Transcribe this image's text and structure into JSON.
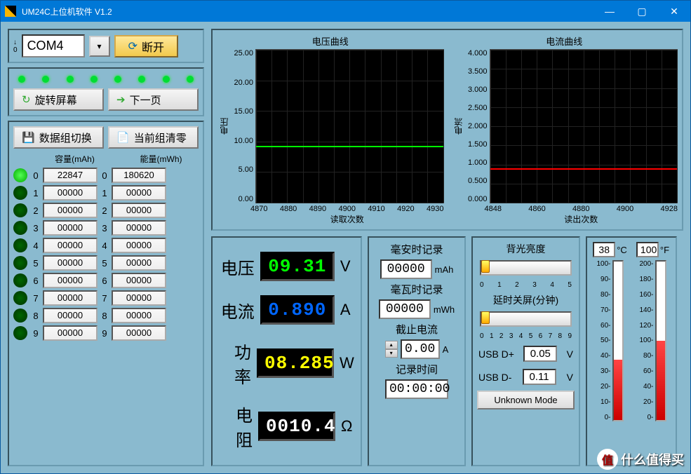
{
  "window": {
    "title": "UM24C上位机软件 V1.2"
  },
  "connection": {
    "port": "COM4",
    "disconnect_label": "断开"
  },
  "nav": {
    "rotate_label": "旋转屏幕",
    "next_label": "下一页"
  },
  "databank": {
    "switch_label": "数据组切换",
    "clear_label": "当前组清零",
    "cap_header": "容量(mAh)",
    "energy_header": "能量(mWh)",
    "rows": [
      {
        "idx": "0",
        "cap": "22847",
        "energy": "180620",
        "on": true
      },
      {
        "idx": "1",
        "cap": "00000",
        "energy": "00000",
        "on": false
      },
      {
        "idx": "2",
        "cap": "00000",
        "energy": "00000",
        "on": false
      },
      {
        "idx": "3",
        "cap": "00000",
        "energy": "00000",
        "on": false
      },
      {
        "idx": "4",
        "cap": "00000",
        "energy": "00000",
        "on": false
      },
      {
        "idx": "5",
        "cap": "00000",
        "energy": "00000",
        "on": false
      },
      {
        "idx": "6",
        "cap": "00000",
        "energy": "00000",
        "on": false
      },
      {
        "idx": "7",
        "cap": "00000",
        "energy": "00000",
        "on": false
      },
      {
        "idx": "8",
        "cap": "00000",
        "energy": "00000",
        "on": false
      },
      {
        "idx": "9",
        "cap": "00000",
        "energy": "00000",
        "on": false
      }
    ]
  },
  "charts": {
    "voltage": {
      "title": "电压曲线",
      "ylabel": "电压",
      "xlabel": "读取次数",
      "ylim": [
        0,
        25
      ],
      "yticks": [
        "25.00",
        "20.00",
        "15.00",
        "10.00",
        "5.00",
        "0.00"
      ],
      "xlim": [
        4870,
        4930
      ],
      "xticks": [
        "4870",
        "4880",
        "4890",
        "4900",
        "4910",
        "4920",
        "4930"
      ],
      "trace_value": 9.31,
      "trace_color": "#00ff00",
      "bg": "#000000",
      "grid": "#1e1e1e"
    },
    "current": {
      "title": "电流曲线",
      "ylabel": "电流",
      "xlabel": "读出次数",
      "ylim": [
        0,
        4
      ],
      "yticks": [
        "4.000",
        "3.500",
        "3.000",
        "2.500",
        "2.000",
        "1.500",
        "1.000",
        "0.500",
        "0.000"
      ],
      "xlim": [
        4848,
        4928
      ],
      "xticks": [
        "4848",
        "4860",
        "4880",
        "4900",
        "4928"
      ],
      "trace_value": 0.89,
      "trace_color": "#ff0000",
      "bg": "#000000",
      "grid": "#1e1e1e"
    }
  },
  "readouts": {
    "voltage": {
      "label": "电压",
      "value": "09.31",
      "unit": "V",
      "color": "#00ff00"
    },
    "current": {
      "label": "电流",
      "value": "0.890",
      "unit": "A",
      "color": "#0066ff"
    },
    "power": {
      "label": "功率",
      "value": "08.285",
      "unit": "W",
      "color": "#ffff00"
    },
    "resist": {
      "label": "电阻",
      "value": "0010.4",
      "unit": "Ω",
      "color": "#ffffff"
    }
  },
  "record": {
    "mah_title": "毫安时记录",
    "mah_value": "00000",
    "mah_unit": "mAh",
    "mwh_title": "毫瓦时记录",
    "mwh_value": "00000",
    "mwh_unit": "mWh",
    "cutoff_title": "截止电流",
    "cutoff_value": "0.00",
    "cutoff_unit": "A",
    "time_title": "记录时间",
    "time_value": "00:00:00"
  },
  "sliders": {
    "brightness": {
      "title": "背光亮度",
      "min": 0,
      "max": 5,
      "value": 0
    },
    "screenoff": {
      "title": "延时关屏(分钟)",
      "min": 0,
      "max": 9,
      "value": 0
    },
    "usb_dp": {
      "label": "USB D+",
      "value": "0.05",
      "unit": "V"
    },
    "usb_dm": {
      "label": "USB D-",
      "value": "0.11",
      "unit": "V"
    },
    "mode": "Unknown Mode"
  },
  "thermo": {
    "c": {
      "value": "38",
      "unit": "°C",
      "min": 0,
      "max": 100,
      "fill": 38
    },
    "f": {
      "value": "100",
      "unit": "°F",
      "min": 0,
      "max": 200,
      "fill": 100
    }
  },
  "watermark": "什么值得买"
}
